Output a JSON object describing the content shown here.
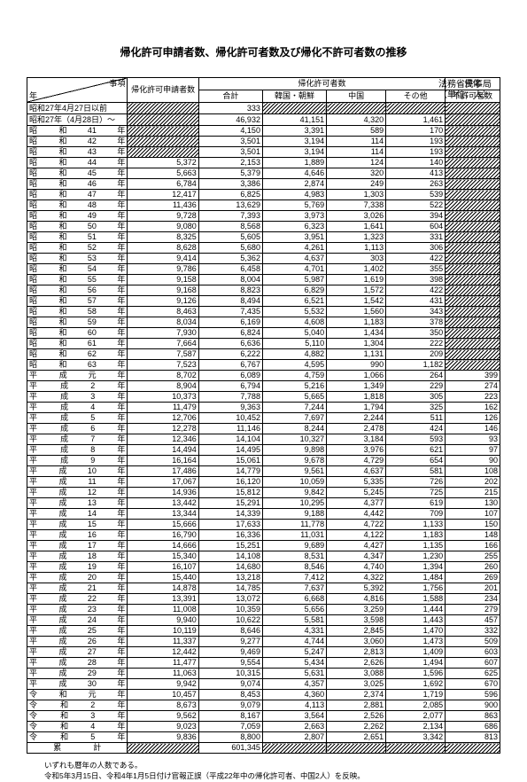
{
  "title": "帰化許可申請者数、帰化許可者数及び帰化不許可者数の推移",
  "agency": "法務省民事局",
  "unit": "（単位：人）",
  "headers": {
    "corner_tr": "事項",
    "corner_bl": "年",
    "applicants": "帰化許可申請者数",
    "permitted": "帰化許可者数",
    "total": "合計",
    "korea": "韓国・朝鮮",
    "china": "中国",
    "other": "その他",
    "denied": "帰化",
    "denied2": "不許可者数"
  },
  "pre": {
    "label": "昭和27年4月27日以前",
    "val": "333"
  },
  "post_label": "昭和27年（4月28日）～",
  "post": [
    "46,932",
    "41,151",
    "4,320",
    "1,461"
  ],
  "rows": [
    {
      "y": [
        "昭",
        "和",
        "41",
        "年"
      ],
      "d": [
        "",
        "4,150",
        "3,391",
        "589",
        "170",
        ""
      ]
    },
    {
      "y": [
        "昭",
        "和",
        "42",
        "年"
      ],
      "d": [
        "",
        "3,501",
        "3,194",
        "114",
        "193",
        ""
      ]
    },
    {
      "y": [
        "昭",
        "和",
        "43",
        "年"
      ],
      "d": [
        "",
        "3,501",
        "3,194",
        "114",
        "193",
        ""
      ]
    },
    {
      "y": [
        "昭",
        "和",
        "44",
        "年"
      ],
      "d": [
        "5,372",
        "2,153",
        "1,889",
        "124",
        "140",
        ""
      ]
    },
    {
      "y": [
        "昭",
        "和",
        "45",
        "年"
      ],
      "d": [
        "5,663",
        "5,379",
        "4,646",
        "320",
        "413",
        ""
      ]
    },
    {
      "y": [
        "昭",
        "和",
        "46",
        "年"
      ],
      "d": [
        "6,784",
        "3,386",
        "2,874",
        "249",
        "263",
        ""
      ]
    },
    {
      "y": [
        "昭",
        "和",
        "47",
        "年"
      ],
      "d": [
        "12,417",
        "6,825",
        "4,983",
        "1,303",
        "539",
        ""
      ]
    },
    {
      "y": [
        "昭",
        "和",
        "48",
        "年"
      ],
      "d": [
        "11,436",
        "13,629",
        "5,769",
        "7,338",
        "522",
        ""
      ]
    },
    {
      "y": [
        "昭",
        "和",
        "49",
        "年"
      ],
      "d": [
        "9,728",
        "7,393",
        "3,973",
        "3,026",
        "394",
        ""
      ]
    },
    {
      "y": [
        "昭",
        "和",
        "50",
        "年"
      ],
      "d": [
        "9,080",
        "8,568",
        "6,323",
        "1,641",
        "604",
        ""
      ]
    },
    {
      "y": [
        "昭",
        "和",
        "51",
        "年"
      ],
      "d": [
        "8,325",
        "5,605",
        "3,951",
        "1,323",
        "331",
        ""
      ]
    },
    {
      "y": [
        "昭",
        "和",
        "52",
        "年"
      ],
      "d": [
        "8,628",
        "5,680",
        "4,261",
        "1,113",
        "306",
        ""
      ]
    },
    {
      "y": [
        "昭",
        "和",
        "53",
        "年"
      ],
      "d": [
        "9,414",
        "5,362",
        "4,637",
        "303",
        "422",
        ""
      ]
    },
    {
      "y": [
        "昭",
        "和",
        "54",
        "年"
      ],
      "d": [
        "9,786",
        "6,458",
        "4,701",
        "1,402",
        "355",
        ""
      ]
    },
    {
      "y": [
        "昭",
        "和",
        "55",
        "年"
      ],
      "d": [
        "9,158",
        "8,004",
        "5,987",
        "1,619",
        "398",
        ""
      ]
    },
    {
      "y": [
        "昭",
        "和",
        "56",
        "年"
      ],
      "d": [
        "9,168",
        "8,823",
        "6,829",
        "1,572",
        "422",
        ""
      ]
    },
    {
      "y": [
        "昭",
        "和",
        "57",
        "年"
      ],
      "d": [
        "9,126",
        "8,494",
        "6,521",
        "1,542",
        "431",
        ""
      ]
    },
    {
      "y": [
        "昭",
        "和",
        "58",
        "年"
      ],
      "d": [
        "8,463",
        "7,435",
        "5,532",
        "1,560",
        "343",
        ""
      ]
    },
    {
      "y": [
        "昭",
        "和",
        "59",
        "年"
      ],
      "d": [
        "8,034",
        "6,169",
        "4,608",
        "1,183",
        "378",
        ""
      ]
    },
    {
      "y": [
        "昭",
        "和",
        "60",
        "年"
      ],
      "d": [
        "7,930",
        "6,824",
        "5,040",
        "1,434",
        "350",
        ""
      ]
    },
    {
      "y": [
        "昭",
        "和",
        "61",
        "年"
      ],
      "d": [
        "7,664",
        "6,636",
        "5,110",
        "1,304",
        "222",
        ""
      ]
    },
    {
      "y": [
        "昭",
        "和",
        "62",
        "年"
      ],
      "d": [
        "7,587",
        "6,222",
        "4,882",
        "1,131",
        "209",
        ""
      ]
    },
    {
      "y": [
        "昭",
        "和",
        "63",
        "年"
      ],
      "d": [
        "7,523",
        "6,767",
        "4,595",
        "990",
        "1,182",
        ""
      ]
    },
    {
      "y": [
        "平",
        "成",
        "元",
        "年"
      ],
      "d": [
        "8,702",
        "6,089",
        "4,759",
        "1,066",
        "264",
        "399"
      ]
    },
    {
      "y": [
        "平",
        "成",
        "2",
        "年"
      ],
      "d": [
        "8,904",
        "6,794",
        "5,216",
        "1,349",
        "229",
        "274"
      ]
    },
    {
      "y": [
        "平",
        "成",
        "3",
        "年"
      ],
      "d": [
        "10,373",
        "7,788",
        "5,665",
        "1,818",
        "305",
        "223"
      ]
    },
    {
      "y": [
        "平",
        "成",
        "4",
        "年"
      ],
      "d": [
        "11,479",
        "9,363",
        "7,244",
        "1,794",
        "325",
        "162"
      ]
    },
    {
      "y": [
        "平",
        "成",
        "5",
        "年"
      ],
      "d": [
        "12,706",
        "10,452",
        "7,697",
        "2,244",
        "511",
        "126"
      ]
    },
    {
      "y": [
        "平",
        "成",
        "6",
        "年"
      ],
      "d": [
        "12,278",
        "11,146",
        "8,244",
        "2,478",
        "424",
        "146"
      ]
    },
    {
      "y": [
        "平",
        "成",
        "7",
        "年"
      ],
      "d": [
        "12,346",
        "14,104",
        "10,327",
        "3,184",
        "593",
        "93"
      ]
    },
    {
      "y": [
        "平",
        "成",
        "8",
        "年"
      ],
      "d": [
        "14,494",
        "14,495",
        "9,898",
        "3,976",
        "621",
        "97"
      ]
    },
    {
      "y": [
        "平",
        "成",
        "9",
        "年"
      ],
      "d": [
        "16,164",
        "15,061",
        "9,678",
        "4,729",
        "654",
        "90"
      ]
    },
    {
      "y": [
        "平",
        "成",
        "10",
        "年"
      ],
      "d": [
        "17,486",
        "14,779",
        "9,561",
        "4,637",
        "581",
        "108"
      ]
    },
    {
      "y": [
        "平",
        "成",
        "11",
        "年"
      ],
      "d": [
        "17,067",
        "16,120",
        "10,059",
        "5,335",
        "726",
        "202"
      ]
    },
    {
      "y": [
        "平",
        "成",
        "12",
        "年"
      ],
      "d": [
        "14,936",
        "15,812",
        "9,842",
        "5,245",
        "725",
        "215"
      ]
    },
    {
      "y": [
        "平",
        "成",
        "13",
        "年"
      ],
      "d": [
        "13,442",
        "15,291",
        "10,295",
        "4,377",
        "619",
        "130"
      ]
    },
    {
      "y": [
        "平",
        "成",
        "14",
        "年"
      ],
      "d": [
        "13,344",
        "14,339",
        "9,188",
        "4,442",
        "709",
        "107"
      ]
    },
    {
      "y": [
        "平",
        "成",
        "15",
        "年"
      ],
      "d": [
        "15,666",
        "17,633",
        "11,778",
        "4,722",
        "1,133",
        "150"
      ]
    },
    {
      "y": [
        "平",
        "成",
        "16",
        "年"
      ],
      "d": [
        "16,790",
        "16,336",
        "11,031",
        "4,122",
        "1,183",
        "148"
      ]
    },
    {
      "y": [
        "平",
        "成",
        "17",
        "年"
      ],
      "d": [
        "14,666",
        "15,251",
        "9,689",
        "4,427",
        "1,135",
        "166"
      ]
    },
    {
      "y": [
        "平",
        "成",
        "18",
        "年"
      ],
      "d": [
        "15,340",
        "14,108",
        "8,531",
        "4,347",
        "1,230",
        "255"
      ]
    },
    {
      "y": [
        "平",
        "成",
        "19",
        "年"
      ],
      "d": [
        "16,107",
        "14,680",
        "8,546",
        "4,740",
        "1,394",
        "260"
      ]
    },
    {
      "y": [
        "平",
        "成",
        "20",
        "年"
      ],
      "d": [
        "15,440",
        "13,218",
        "7,412",
        "4,322",
        "1,484",
        "269"
      ]
    },
    {
      "y": [
        "平",
        "成",
        "21",
        "年"
      ],
      "d": [
        "14,878",
        "14,785",
        "7,637",
        "5,392",
        "1,756",
        "201"
      ]
    },
    {
      "y": [
        "平",
        "成",
        "22",
        "年"
      ],
      "d": [
        "13,391",
        "13,072",
        "6,668",
        "4,816",
        "1,588",
        "234"
      ]
    },
    {
      "y": [
        "平",
        "成",
        "23",
        "年"
      ],
      "d": [
        "11,008",
        "10,359",
        "5,656",
        "3,259",
        "1,444",
        "279"
      ]
    },
    {
      "y": [
        "平",
        "成",
        "24",
        "年"
      ],
      "d": [
        "9,940",
        "10,622",
        "5,581",
        "3,598",
        "1,443",
        "457"
      ]
    },
    {
      "y": [
        "平",
        "成",
        "25",
        "年"
      ],
      "d": [
        "10,119",
        "8,646",
        "4,331",
        "2,845",
        "1,470",
        "332"
      ]
    },
    {
      "y": [
        "平",
        "成",
        "26",
        "年"
      ],
      "d": [
        "11,337",
        "9,277",
        "4,744",
        "3,060",
        "1,473",
        "509"
      ]
    },
    {
      "y": [
        "平",
        "成",
        "27",
        "年"
      ],
      "d": [
        "12,442",
        "9,469",
        "5,247",
        "2,813",
        "1,409",
        "603"
      ]
    },
    {
      "y": [
        "平",
        "成",
        "28",
        "年"
      ],
      "d": [
        "11,477",
        "9,554",
        "5,434",
        "2,626",
        "1,494",
        "607"
      ]
    },
    {
      "y": [
        "平",
        "成",
        "29",
        "年"
      ],
      "d": [
        "11,063",
        "10,315",
        "5,631",
        "3,088",
        "1,596",
        "625"
      ]
    },
    {
      "y": [
        "平",
        "成",
        "30",
        "年"
      ],
      "d": [
        "9,942",
        "9,074",
        "4,357",
        "3,025",
        "1,692",
        "670"
      ]
    },
    {
      "y": [
        "令",
        "和",
        "元",
        "年"
      ],
      "d": [
        "10,457",
        "8,453",
        "4,360",
        "2,374",
        "1,719",
        "596"
      ]
    },
    {
      "y": [
        "令",
        "和",
        "2",
        "年"
      ],
      "d": [
        "8,673",
        "9,079",
        "4,113",
        "2,881",
        "2,085",
        "900"
      ]
    },
    {
      "y": [
        "令",
        "和",
        "3",
        "年"
      ],
      "d": [
        "9,562",
        "8,167",
        "3,564",
        "2,526",
        "2,077",
        "863"
      ]
    },
    {
      "y": [
        "令",
        "和",
        "4",
        "年"
      ],
      "d": [
        "9,023",
        "7,059",
        "2,663",
        "2,262",
        "2,134",
        "686"
      ]
    },
    {
      "y": [
        "令",
        "和",
        "5",
        "年"
      ],
      "d": [
        "9,836",
        "8,800",
        "2,807",
        "2,651",
        "3,342",
        "813"
      ]
    }
  ],
  "sumlabel": "累　　　　計",
  "sumval": "601,345",
  "note1": "いずれも暦年の人数である。",
  "note2": "令和5年3月15日、令和4年1月5日付け官報正誤（平成22年中の帰化許可者、中国2人）を反映。"
}
